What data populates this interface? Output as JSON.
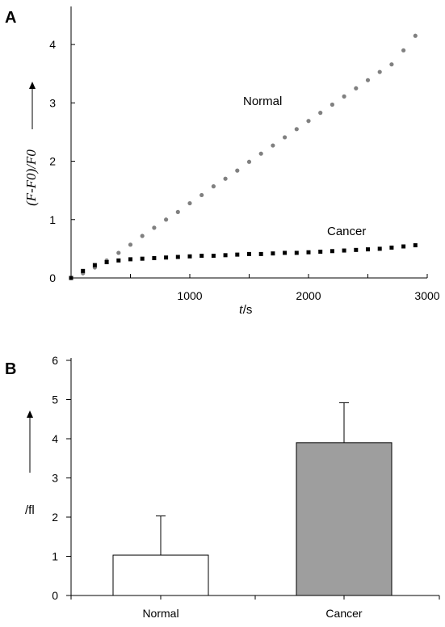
{
  "chart_data": [
    {
      "panel": "A",
      "type": "scatter",
      "xlabel_var": "t",
      "xlabel_unit": "/s",
      "ylabel": "(F-F0)/F0",
      "xlim": [
        0,
        3000
      ],
      "ylim": [
        0,
        4.5
      ],
      "xticks": [
        1000,
        2000,
        3000
      ],
      "yticks": [
        0,
        1,
        2,
        3,
        4
      ],
      "series": [
        {
          "name": "Normal",
          "color": "#808080",
          "x": [
            0,
            100,
            200,
            300,
            400,
            500,
            600,
            700,
            800,
            900,
            1000,
            1100,
            1200,
            1300,
            1400,
            1500,
            1600,
            1700,
            1800,
            1900,
            2000,
            2100,
            2200,
            2300,
            2400,
            2500,
            2600,
            2700,
            2800,
            2900
          ],
          "y": [
            0,
            0.08,
            0.18,
            0.3,
            0.43,
            0.57,
            0.72,
            0.86,
            1.0,
            1.13,
            1.28,
            1.42,
            1.57,
            1.7,
            1.84,
            1.99,
            2.13,
            2.27,
            2.41,
            2.55,
            2.69,
            2.83,
            2.97,
            3.11,
            3.25,
            3.39,
            3.53,
            3.66,
            3.9,
            4.15
          ]
        },
        {
          "name": "Cancer",
          "color": "#000000",
          "x": [
            0,
            100,
            200,
            300,
            400,
            500,
            600,
            700,
            800,
            900,
            1000,
            1100,
            1200,
            1300,
            1400,
            1500,
            1600,
            1700,
            1800,
            1900,
            2000,
            2100,
            2200,
            2300,
            2400,
            2500,
            2600,
            2700,
            2800,
            2900
          ],
          "y": [
            0,
            0.12,
            0.22,
            0.27,
            0.3,
            0.32,
            0.33,
            0.34,
            0.35,
            0.36,
            0.37,
            0.38,
            0.38,
            0.39,
            0.4,
            0.41,
            0.41,
            0.42,
            0.43,
            0.43,
            0.44,
            0.45,
            0.46,
            0.47,
            0.48,
            0.49,
            0.5,
            0.52,
            0.54,
            0.56
          ]
        }
      ]
    },
    {
      "panel": "B",
      "type": "bar",
      "ylabel": "/fl",
      "ylim": [
        0,
        6
      ],
      "yticks": [
        0,
        1,
        2,
        3,
        4,
        5,
        6
      ],
      "categories": [
        "Normal",
        "Cancer"
      ],
      "values": [
        1.03,
        3.9
      ],
      "errors": [
        1.0,
        1.02
      ],
      "colors": [
        "#ffffff",
        "#9e9e9e"
      ]
    }
  ]
}
